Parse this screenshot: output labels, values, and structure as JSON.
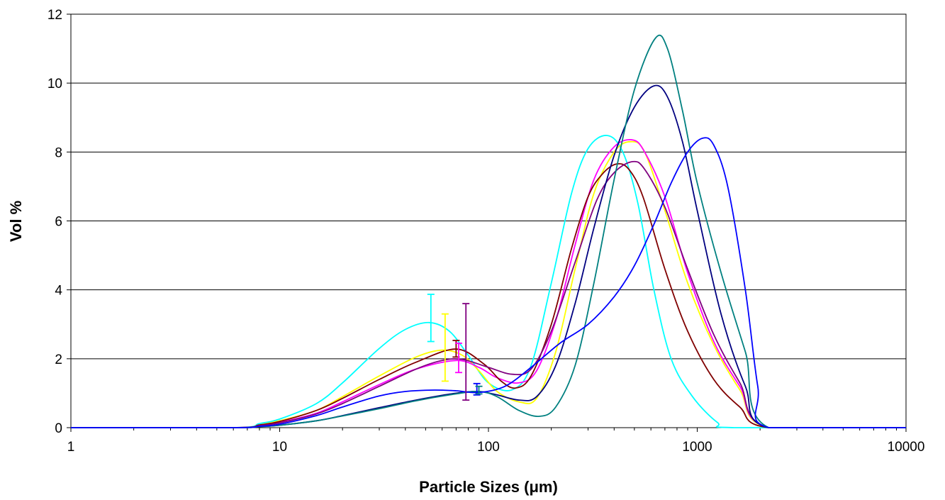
{
  "chart_data": {
    "type": "line",
    "title": "",
    "xlabel": "Particle Sizes (μm)",
    "ylabel": "Vol %",
    "x_scale": "log",
    "xlim": [
      1,
      10000
    ],
    "ylim": [
      0,
      12
    ],
    "x_ticks": [
      "1",
      "10",
      "100",
      "1000",
      "10000"
    ],
    "y_ticks": [
      "0",
      "2",
      "4",
      "6",
      "8",
      "10",
      "12"
    ],
    "grid": "horizontal major gridlines",
    "legend": "none",
    "series": [
      {
        "color": "#00FFFF",
        "x": [
          1,
          6,
          8,
          10,
          15,
          20,
          30,
          40,
          52,
          65,
          80,
          100,
          130,
          160,
          200,
          250,
          300,
          370,
          440,
          520,
          620,
          750,
          950,
          1250,
          1500,
          10000
        ],
        "y": [
          0,
          0,
          0.12,
          0.25,
          0.7,
          1.3,
          2.3,
          2.85,
          3.05,
          2.8,
          2.1,
          1.3,
          1.1,
          1.8,
          4.2,
          6.8,
          8.1,
          8.48,
          8.0,
          6.5,
          4.0,
          2.0,
          0.9,
          0.15,
          0,
          0
        ]
      },
      {
        "color": "#FFFF00",
        "x": [
          1,
          6,
          8,
          10,
          15,
          20,
          30,
          45,
          60,
          75,
          90,
          110,
          140,
          170,
          210,
          260,
          320,
          400,
          480,
          560,
          700,
          900,
          1200,
          1600,
          2200,
          10000
        ],
        "y": [
          0,
          0,
          0.08,
          0.2,
          0.5,
          0.9,
          1.5,
          2.05,
          2.25,
          2.1,
          1.65,
          1.05,
          0.75,
          0.85,
          2.2,
          4.6,
          6.8,
          8.0,
          8.3,
          8.0,
          6.3,
          4.2,
          2.4,
          1.1,
          0,
          0
        ]
      },
      {
        "color": "#FF00FF",
        "x": [
          1,
          6,
          8,
          10,
          15,
          20,
          30,
          45,
          70,
          90,
          110,
          140,
          170,
          210,
          260,
          320,
          400,
          490,
          560,
          700,
          900,
          1200,
          1600,
          2200,
          10000
        ],
        "y": [
          0,
          0,
          0.06,
          0.15,
          0.42,
          0.75,
          1.25,
          1.7,
          1.95,
          1.75,
          1.45,
          1.3,
          1.65,
          3.1,
          5.3,
          7.2,
          8.15,
          8.35,
          8.0,
          6.7,
          4.5,
          2.5,
          1.2,
          0,
          0
        ]
      },
      {
        "color": "#800000",
        "x": [
          1,
          6,
          8,
          10,
          15,
          20,
          30,
          45,
          70,
          95,
          115,
          135,
          160,
          200,
          250,
          300,
          350,
          410,
          470,
          550,
          700,
          900,
          1200,
          1600,
          2200,
          10000
        ],
        "y": [
          0,
          0,
          0.08,
          0.18,
          0.5,
          0.85,
          1.4,
          1.9,
          2.28,
          1.85,
          1.35,
          1.15,
          1.5,
          3.0,
          5.2,
          6.7,
          7.35,
          7.65,
          7.5,
          6.7,
          4.6,
          2.8,
          1.4,
          0.6,
          0,
          0
        ]
      },
      {
        "color": "#800080",
        "x": [
          1,
          6,
          8,
          10,
          15,
          20,
          30,
          45,
          60,
          75,
          100,
          130,
          160,
          200,
          260,
          330,
          400,
          490,
          560,
          700,
          900,
          1200,
          1600,
          2200,
          10000
        ],
        "y": [
          0,
          0,
          0.06,
          0.14,
          0.4,
          0.7,
          1.2,
          1.7,
          1.95,
          1.98,
          1.75,
          1.55,
          1.7,
          2.8,
          4.8,
          6.6,
          7.4,
          7.72,
          7.5,
          6.4,
          4.6,
          2.7,
          1.3,
          0,
          0
        ]
      },
      {
        "color": "#000080",
        "x": [
          1,
          6,
          8,
          10,
          15,
          20,
          30,
          45,
          70,
          90,
          110,
          140,
          170,
          210,
          260,
          320,
          400,
          500,
          620,
          720,
          850,
          1000,
          1300,
          1700,
          2200,
          10000
        ],
        "y": [
          0,
          0,
          0.03,
          0.07,
          0.2,
          0.35,
          0.58,
          0.8,
          1.0,
          1.05,
          0.95,
          0.8,
          0.9,
          1.8,
          3.6,
          5.8,
          7.9,
          9.3,
          9.92,
          9.6,
          8.3,
          6.3,
          3.3,
          1.2,
          0,
          0
        ]
      },
      {
        "color": "#008080",
        "x": [
          1,
          6,
          8,
          10,
          15,
          20,
          30,
          45,
          70,
          90,
          110,
          140,
          175,
          210,
          260,
          320,
          400,
          500,
          630,
          720,
          850,
          1000,
          1300,
          1700,
          2200,
          10000
        ],
        "y": [
          0,
          0,
          0.03,
          0.07,
          0.2,
          0.34,
          0.55,
          0.78,
          0.98,
          1.05,
          0.9,
          0.5,
          0.33,
          0.6,
          1.8,
          4.2,
          7.2,
          9.8,
          11.3,
          11.0,
          9.2,
          7.1,
          4.5,
          2.2,
          0,
          0
        ]
      },
      {
        "color": "#0000FF",
        "x": [
          1,
          6,
          8,
          10,
          15,
          20,
          30,
          40,
          55,
          70,
          90,
          120,
          160,
          220,
          300,
          400,
          500,
          620,
          750,
          900,
          1060,
          1200,
          1400,
          1700,
          1950,
          2200,
          10000
        ],
        "y": [
          0,
          0,
          0.04,
          0.1,
          0.35,
          0.6,
          0.92,
          1.05,
          1.09,
          1.07,
          1.02,
          1.2,
          1.75,
          2.45,
          3.0,
          3.8,
          4.7,
          5.9,
          7.1,
          8.0,
          8.4,
          8.2,
          7.0,
          4.0,
          1.2,
          0,
          0
        ]
      }
    ],
    "error_bars": [
      {
        "color": "#00FFFF",
        "x": 53,
        "low": 2.5,
        "high": 3.87
      },
      {
        "color": "#FFFF00",
        "x": 62,
        "low": 1.35,
        "high": 3.3
      },
      {
        "color": "#800000",
        "x": 70,
        "low": 2.05,
        "high": 2.53
      },
      {
        "color": "#FF00FF",
        "x": 72,
        "low": 1.6,
        "high": 2.45
      },
      {
        "color": "#800080",
        "x": 78,
        "low": 0.8,
        "high": 3.6
      },
      {
        "color": "#0000FF",
        "x": 88,
        "low": 0.95,
        "high": 1.28
      },
      {
        "color": "#008080",
        "x": 90,
        "low": 0.98,
        "high": 1.2
      }
    ]
  }
}
